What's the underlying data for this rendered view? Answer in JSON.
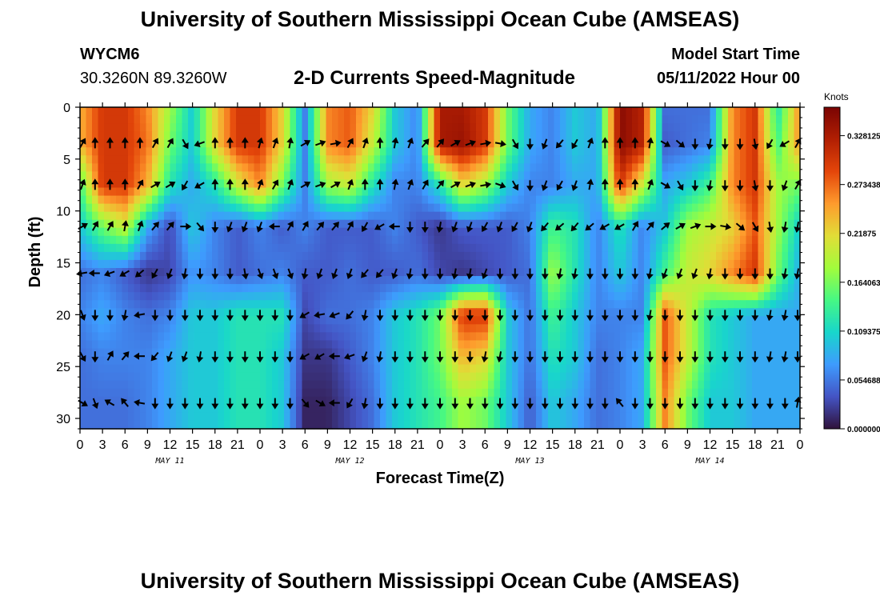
{
  "header": {
    "title": "University of Southern Mississippi Ocean Cube (AMSEAS)",
    "station_id": "WYCM6",
    "station_coords": "30.3260N  89.3260W",
    "plot_title": "2-D Currents Speed-Magnitude",
    "model_start_label": "Model Start Time",
    "model_start_value": "05/11/2022 Hour 00"
  },
  "footer": {
    "title": "University of Southern Mississippi Ocean Cube (AMSEAS)"
  },
  "chart_data": {
    "type": "heatmap",
    "title": "2-D Currents Speed-Magnitude",
    "xlabel": "Forecast Time(Z)",
    "ylabel": "Depth (ft)",
    "x_hours_range": [
      0,
      96
    ],
    "x_tick_labels": [
      "0",
      "3",
      "6",
      "9",
      "12",
      "15",
      "18",
      "21",
      "0",
      "3",
      "6",
      "9",
      "12",
      "15",
      "18",
      "21",
      "0",
      "3",
      "6",
      "9",
      "12",
      "15",
      "18",
      "21",
      "0",
      "3",
      "6",
      "9",
      "12",
      "15",
      "18",
      "21",
      "0"
    ],
    "date_labels": [
      {
        "label": "MAY 11",
        "hour": 12
      },
      {
        "label": "MAY 12",
        "hour": 36
      },
      {
        "label": "MAY 13",
        "hour": 60
      },
      {
        "label": "MAY 14",
        "hour": 84
      }
    ],
    "ylim": [
      0,
      31
    ],
    "y_ticks": [
      0,
      5,
      10,
      15,
      20,
      25,
      30
    ],
    "depth_levels": [
      3.5,
      7.5,
      11.5,
      16,
      20,
      24,
      28.5
    ],
    "colorbar": {
      "label": "Knots",
      "range": [
        0,
        0.36
      ],
      "tick_labels": [
        "0.328125",
        "0.273438",
        "0.21875",
        "0.164063",
        "0.109375",
        "0.054688",
        "0.000000"
      ],
      "tick_values": [
        0.328125,
        0.273438,
        0.21875,
        0.164063,
        0.109375,
        0.054688,
        0.0
      ]
    },
    "speed_grid": {
      "hours": [
        0,
        3,
        6,
        9,
        12,
        15,
        18,
        21,
        24,
        27,
        30,
        33,
        36,
        39,
        42,
        45,
        48,
        51,
        54,
        57,
        60,
        63,
        66,
        69,
        72,
        75,
        78,
        81,
        84,
        87,
        90,
        93,
        96
      ],
      "depths": [
        0,
        3.5,
        7.5,
        11.5,
        16,
        20,
        24,
        28.5,
        31
      ],
      "values": [
        [
          0.24,
          0.3,
          0.3,
          0.26,
          0.18,
          0.1,
          0.22,
          0.3,
          0.3,
          0.22,
          0.06,
          0.26,
          0.28,
          0.22,
          0.1,
          0.06,
          0.33,
          0.33,
          0.3,
          0.16,
          0.08,
          0.06,
          0.1,
          0.08,
          0.35,
          0.32,
          0.05,
          0.05,
          0.05,
          0.26,
          0.3,
          0.12,
          0.26
        ],
        [
          0.24,
          0.3,
          0.3,
          0.27,
          0.16,
          0.1,
          0.22,
          0.3,
          0.3,
          0.22,
          0.06,
          0.26,
          0.28,
          0.2,
          0.1,
          0.06,
          0.33,
          0.34,
          0.3,
          0.16,
          0.08,
          0.06,
          0.1,
          0.08,
          0.35,
          0.32,
          0.04,
          0.05,
          0.06,
          0.26,
          0.3,
          0.14,
          0.26
        ],
        [
          0.14,
          0.3,
          0.3,
          0.24,
          0.12,
          0.08,
          0.12,
          0.2,
          0.26,
          0.16,
          0.06,
          0.18,
          0.2,
          0.12,
          0.06,
          0.06,
          0.12,
          0.22,
          0.18,
          0.1,
          0.06,
          0.06,
          0.08,
          0.08,
          0.3,
          0.2,
          0.08,
          0.1,
          0.14,
          0.26,
          0.3,
          0.18,
          0.16
        ],
        [
          0.1,
          0.16,
          0.2,
          0.08,
          0.03,
          0.1,
          0.06,
          0.04,
          0.06,
          0.04,
          0.06,
          0.04,
          0.04,
          0.04,
          0.06,
          0.04,
          0.02,
          0.04,
          0.04,
          0.04,
          0.06,
          0.14,
          0.12,
          0.06,
          0.12,
          0.06,
          0.1,
          0.18,
          0.2,
          0.22,
          0.28,
          0.18,
          0.1
        ],
        [
          0.05,
          0.06,
          0.04,
          0.02,
          0.03,
          0.07,
          0.06,
          0.04,
          0.05,
          0.06,
          0.04,
          0.04,
          0.05,
          0.04,
          0.04,
          0.05,
          0.03,
          0.02,
          0.03,
          0.04,
          0.05,
          0.18,
          0.12,
          0.06,
          0.1,
          0.06,
          0.14,
          0.2,
          0.22,
          0.26,
          0.3,
          0.16,
          0.08
        ],
        [
          0.06,
          0.08,
          0.06,
          0.05,
          0.06,
          0.1,
          0.1,
          0.12,
          0.12,
          0.12,
          0.03,
          0.05,
          0.05,
          0.06,
          0.1,
          0.12,
          0.16,
          0.3,
          0.3,
          0.1,
          0.05,
          0.14,
          0.1,
          0.06,
          0.06,
          0.06,
          0.28,
          0.2,
          0.12,
          0.1,
          0.08,
          0.08,
          0.08
        ],
        [
          0.05,
          0.06,
          0.06,
          0.06,
          0.08,
          0.1,
          0.1,
          0.12,
          0.12,
          0.1,
          0.02,
          0.02,
          0.04,
          0.06,
          0.1,
          0.12,
          0.16,
          0.24,
          0.22,
          0.1,
          0.05,
          0.12,
          0.1,
          0.05,
          0.06,
          0.08,
          0.28,
          0.2,
          0.12,
          0.1,
          0.08,
          0.08,
          0.08
        ],
        [
          0.05,
          0.05,
          0.05,
          0.06,
          0.08,
          0.1,
          0.1,
          0.12,
          0.12,
          0.1,
          0.01,
          0.01,
          0.03,
          0.05,
          0.1,
          0.12,
          0.14,
          0.18,
          0.16,
          0.1,
          0.04,
          0.1,
          0.08,
          0.05,
          0.06,
          0.08,
          0.26,
          0.16,
          0.1,
          0.1,
          0.08,
          0.08,
          0.08
        ],
        [
          0.05,
          0.05,
          0.05,
          0.06,
          0.08,
          0.1,
          0.1,
          0.12,
          0.12,
          0.1,
          0.01,
          0.01,
          0.03,
          0.05,
          0.1,
          0.12,
          0.14,
          0.18,
          0.16,
          0.1,
          0.04,
          0.1,
          0.08,
          0.05,
          0.06,
          0.08,
          0.26,
          0.16,
          0.1,
          0.1,
          0.08,
          0.08,
          0.08
        ]
      ]
    },
    "vector_hours": [
      0,
      2,
      4,
      6,
      8,
      10,
      12,
      14,
      16,
      18,
      20,
      22,
      24,
      26,
      28,
      30,
      32,
      34,
      36,
      38,
      40,
      42,
      44,
      46,
      48,
      50,
      52,
      54,
      56,
      58,
      60,
      62,
      64,
      66,
      68,
      70,
      72,
      74,
      76,
      78,
      80,
      82,
      84,
      86,
      88,
      90,
      92,
      94,
      96
    ],
    "vector_directions_deg": [
      [
        30,
        0,
        0,
        0,
        0,
        30,
        30,
        150,
        250,
        0,
        0,
        0,
        15,
        20,
        10,
        60,
        70,
        80,
        30,
        20,
        0,
        10,
        20,
        40,
        40,
        60,
        70,
        80,
        100,
        150,
        180,
        200,
        220,
        210,
        20,
        0,
        0,
        0,
        10,
        120,
        130,
        180,
        190,
        180,
        180,
        170,
        210,
        240,
        30
      ],
      [
        20,
        0,
        0,
        0,
        30,
        60,
        60,
        210,
        240,
        0,
        0,
        0,
        20,
        30,
        20,
        60,
        70,
        60,
        20,
        0,
        0,
        10,
        20,
        30,
        40,
        60,
        70,
        80,
        110,
        150,
        180,
        200,
        210,
        200,
        10,
        0,
        0,
        0,
        20,
        120,
        150,
        180,
        190,
        180,
        180,
        170,
        180,
        200,
        30
      ],
      [
        60,
        30,
        30,
        10,
        20,
        40,
        40,
        90,
        140,
        180,
        200,
        200,
        200,
        270,
        30,
        30,
        40,
        40,
        30,
        210,
        240,
        270,
        180,
        180,
        190,
        200,
        200,
        210,
        200,
        210,
        200,
        220,
        230,
        220,
        230,
        240,
        240,
        30,
        40,
        50,
        60,
        70,
        90,
        100,
        130,
        150,
        170,
        190,
        190
      ],
      [
        260,
        270,
        250,
        240,
        230,
        210,
        200,
        190,
        180,
        180,
        180,
        170,
        160,
        160,
        160,
        190,
        200,
        200,
        200,
        220,
        220,
        200,
        190,
        180,
        180,
        190,
        190,
        200,
        180,
        180,
        180,
        180,
        190,
        190,
        180,
        180,
        180,
        180,
        190,
        200,
        200,
        200,
        190,
        180,
        180,
        180,
        180,
        190,
        190
      ],
      [
        160,
        180,
        180,
        190,
        260,
        180,
        180,
        180,
        180,
        180,
        180,
        180,
        180,
        180,
        180,
        240,
        260,
        250,
        220,
        190,
        180,
        180,
        180,
        180,
        180,
        180,
        180,
        180,
        180,
        180,
        180,
        180,
        180,
        180,
        180,
        180,
        180,
        180,
        190,
        180,
        180,
        180,
        180,
        180,
        180,
        180,
        190,
        190,
        180
      ],
      [
        150,
        180,
        30,
        40,
        270,
        220,
        200,
        200,
        190,
        180,
        180,
        180,
        180,
        180,
        180,
        240,
        240,
        270,
        250,
        200,
        190,
        180,
        180,
        180,
        180,
        180,
        180,
        190,
        190,
        180,
        180,
        180,
        180,
        180,
        180,
        180,
        180,
        180,
        180,
        180,
        180,
        180,
        180,
        180,
        180,
        180,
        190,
        190,
        180
      ],
      [
        120,
        160,
        300,
        320,
        280,
        180,
        180,
        180,
        180,
        180,
        180,
        180,
        180,
        180,
        180,
        140,
        120,
        270,
        210,
        190,
        180,
        180,
        180,
        180,
        180,
        180,
        180,
        180,
        180,
        180,
        180,
        180,
        180,
        180,
        180,
        180,
        320,
        180,
        180,
        180,
        180,
        180,
        180,
        180,
        180,
        180,
        180,
        180,
        10
      ]
    ]
  }
}
